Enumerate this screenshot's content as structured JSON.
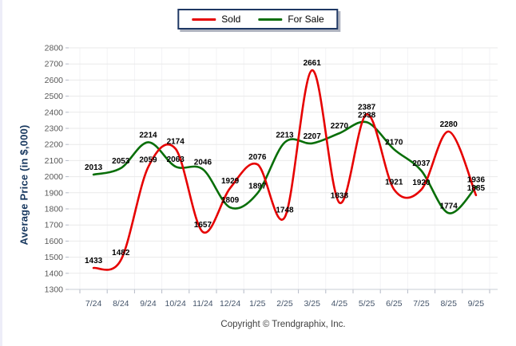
{
  "chart_data": {
    "type": "line",
    "title": "",
    "categories": [
      "7/24",
      "8/24",
      "9/24",
      "10/24",
      "11/24",
      "12/24",
      "1/25",
      "2/25",
      "3/25",
      "4/25",
      "5/25",
      "6/25",
      "7/25",
      "8/25",
      "9/25"
    ],
    "series": [
      {
        "name": "Sold",
        "color": "#E60000",
        "values": [
          1433,
          1482,
          2059,
          2174,
          1657,
          1929,
          2076,
          1748,
          2661,
          1838,
          2387,
          1921,
          1920,
          2280,
          1885
        ]
      },
      {
        "name": "For Sale",
        "color": "#086E08",
        "values": [
          2013,
          2053,
          2214,
          2063,
          2046,
          1809,
          1897,
          2213,
          2207,
          2270,
          2338,
          2170,
          2037,
          1774,
          1936
        ]
      }
    ],
    "xlabel": "",
    "ylabel": "Average Price (in $,000)",
    "ylim": [
      1300,
      2800
    ],
    "ytick_step": 100,
    "grid": true,
    "smooth": true,
    "data_labels": true,
    "legend_position": "top-center"
  },
  "footer": {
    "copyright": "Copyright © Trendgraphix, Inc."
  },
  "colors": {
    "grid_horizontal": "#E9E9E9",
    "grid_vertical": "#F3F3F5",
    "axis_line": "#C9CDD6",
    "tick_mark": "#B4BAC6",
    "ytick_text": "#595959",
    "xtick_text": "#44546A",
    "ytitle_text": "#17375E",
    "data_label_text": "#000000",
    "legend_border": "#1F3864",
    "copyright_text": "#3F3F3F",
    "left_edge_strip": "#EDEDF8"
  }
}
